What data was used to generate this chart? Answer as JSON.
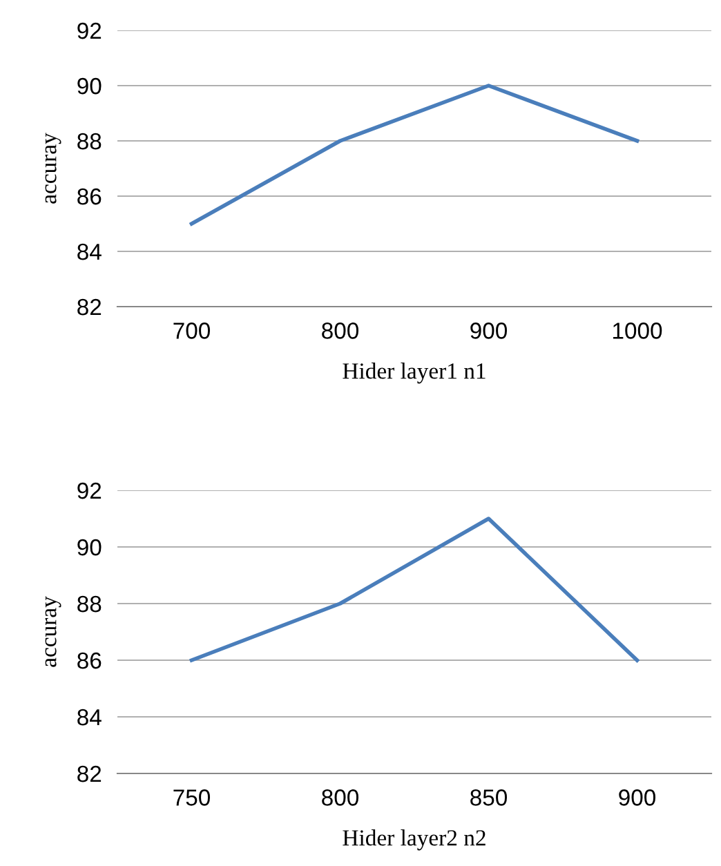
{
  "chart_data": [
    {
      "type": "line",
      "xlabel": "Hider layer1 n1",
      "ylabel": "accuray",
      "categories": [
        "700",
        "800",
        "900",
        "1000"
      ],
      "series": [
        {
          "color": "#4a7ebb",
          "values": [
            85,
            88,
            90,
            88
          ]
        }
      ],
      "ylim": [
        82,
        92
      ],
      "yticks": [
        82,
        84,
        86,
        88,
        90,
        92
      ],
      "grid": "y",
      "marker": "none",
      "line_style": "solid"
    },
    {
      "type": "line",
      "xlabel": "Hider layer2 n2",
      "ylabel": "accuray",
      "categories": [
        "750",
        "800",
        "850",
        "900"
      ],
      "series": [
        {
          "color": "#4a7ebb",
          "values": [
            86,
            88,
            91,
            86
          ]
        }
      ],
      "ylim": [
        82,
        92
      ],
      "yticks": [
        82,
        84,
        86,
        88,
        90,
        92
      ],
      "grid": "y",
      "marker": "none",
      "line_style": "solid"
    }
  ]
}
